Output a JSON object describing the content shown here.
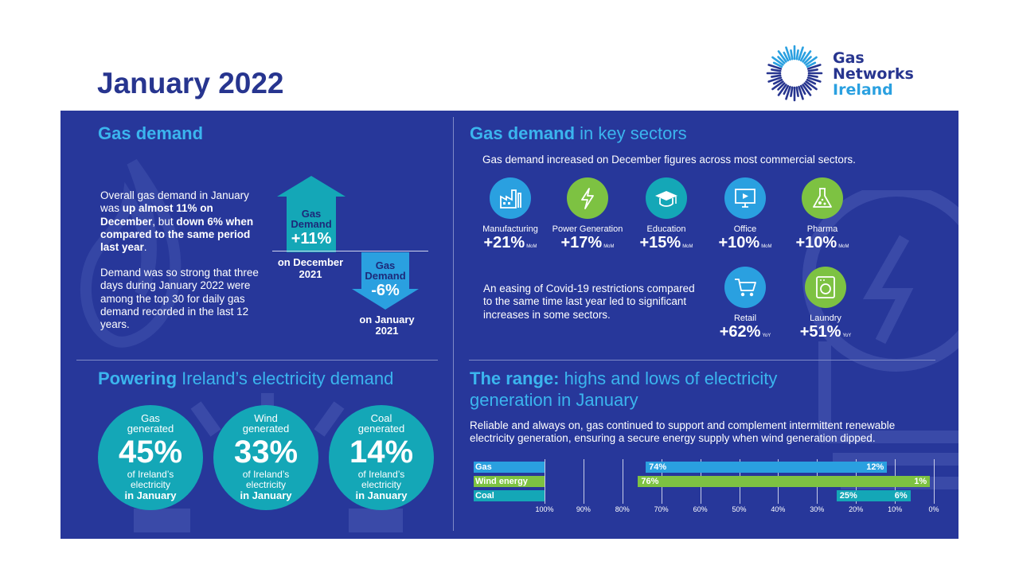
{
  "page_title": "January 2022",
  "logo": {
    "line1": "Gas",
    "line2": "Networks",
    "line3": "Ireland"
  },
  "gas_demand": {
    "title": "Gas demand",
    "para1_a": "Overall gas demand in January was ",
    "para1_b": "up almost 11% on December",
    "para1_c": ", but ",
    "para1_d": "down 6% when compared to the same period last year",
    "para1_e": ".",
    "para2": "Demand was so strong that three days during January 2022 were among the top 30 for daily gas demand recorded in the last 12 years.",
    "up_arrow": {
      "line1": "Gas",
      "line2": "Demand",
      "value": "+11%",
      "caption1": "on December",
      "caption2": "2021"
    },
    "down_arrow": {
      "line1": "Gas",
      "line2": "Demand",
      "value": "-6%",
      "caption1": "on January",
      "caption2": "2021"
    }
  },
  "key_sectors": {
    "title_bold": "Gas demand",
    "title_rest": " in key sectors",
    "intro": "Gas demand increased on December figures across most commercial sectors.",
    "covid_note": "An easing of Covid-19 restrictions compared to the same time last year led to significant increases in some sectors.",
    "sectors": [
      {
        "name": "Manufacturing",
        "value": "+21%",
        "unit": "MoM",
        "icon": "factory-icon",
        "color": "#2aa0e0"
      },
      {
        "name": "Power Generation",
        "value": "+17%",
        "unit": "MoM",
        "icon": "lightning-icon",
        "color": "#7dc242"
      },
      {
        "name": "Education",
        "value": "+15%",
        "unit": "MoM",
        "icon": "graduation-cap-icon",
        "color": "#14a7b7"
      },
      {
        "name": "Office",
        "value": "+10%",
        "unit": "MoM",
        "icon": "monitor-icon",
        "color": "#2aa0e0"
      },
      {
        "name": "Pharma",
        "value": "+10%",
        "unit": "MoM",
        "icon": "flask-icon",
        "color": "#7dc242"
      },
      {
        "name": "Retail",
        "value": "+62%",
        "unit": "YoY",
        "icon": "shopping-cart-icon",
        "color": "#2aa0e0"
      },
      {
        "name": "Laundry",
        "value": "+51%",
        "unit": "YoY",
        "icon": "washing-machine-icon",
        "color": "#7dc242"
      }
    ]
  },
  "electricity": {
    "title_bold": "Powering",
    "title_rest": " Ireland’s electricity demand",
    "bubbles": [
      {
        "line1": "Gas",
        "line2": "generated",
        "value": "45%",
        "line3": "of Ireland’s",
        "line4": "electricity",
        "line5": "in January"
      },
      {
        "line1": "Wind",
        "line2": "generated",
        "value": "33%",
        "line3": "of Ireland’s",
        "line4": "electricity",
        "line5": "in January"
      },
      {
        "line1": "Coal",
        "line2": "generated",
        "value": "14%",
        "line3": "of Ireland’s",
        "line4": "electricity",
        "line5": "in January"
      }
    ]
  },
  "range": {
    "title_bold": "The range:",
    "title_rest_1": " highs and lows of electricity",
    "title_rest_2": "generation in January",
    "intro": "Reliable and always on, gas continued to support and complement intermittent renewable electricity generation, ensuring a secure energy supply when wind generation dipped."
  },
  "chart_data": {
    "type": "bar",
    "categories": [
      "Gas",
      "Wind energy",
      "Coal"
    ],
    "series": [
      {
        "name": "Gas",
        "high": 74,
        "low": 12,
        "high_label": "74%",
        "low_label": "12%",
        "color": "#2aa0e0"
      },
      {
        "name": "Wind energy",
        "high": 76,
        "low": 1,
        "high_label": "76%",
        "low_label": "1%",
        "color": "#7dc242"
      },
      {
        "name": "Coal",
        "high": 25,
        "low": 6,
        "high_label": "25%",
        "low_label": "6%",
        "color": "#14a7b7"
      }
    ],
    "x_ticks": [
      "100%",
      "90%",
      "80%",
      "70%",
      "60%",
      "50%",
      "40%",
      "30%",
      "20%",
      "10%",
      "0%"
    ],
    "xlim": [
      100,
      0
    ]
  }
}
